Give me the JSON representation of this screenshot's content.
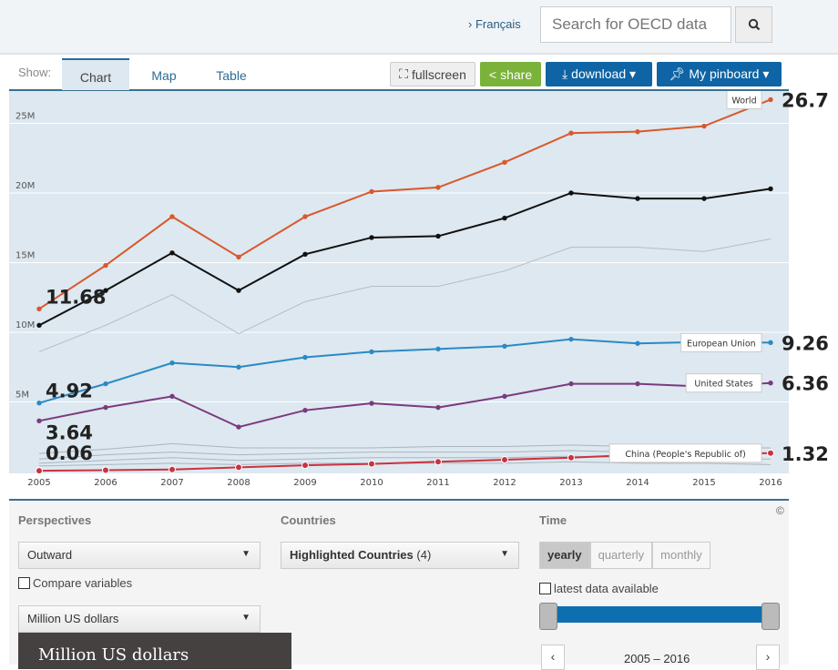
{
  "header": {
    "language_link": "› Français",
    "search_placeholder": "Search for OECD data",
    "search_icon": "magnifier-icon"
  },
  "toolbar": {
    "show_label": "Show:",
    "tabs": [
      {
        "label": "Chart",
        "active": true
      },
      {
        "label": "Map"
      },
      {
        "label": "Table"
      }
    ],
    "fullscreen": "fullscreen",
    "share": "share",
    "download": "download ▾",
    "pinboard": "My pinboard ▾"
  },
  "chart_data": {
    "type": "line",
    "x": [
      2005,
      2006,
      2007,
      2008,
      2009,
      2010,
      2011,
      2012,
      2013,
      2014,
      2015,
      2016
    ],
    "x_tick_labels": [
      "2005",
      "2006",
      "2007",
      "2008",
      "2009",
      "2010",
      "2011",
      "2012",
      "2013",
      "2014",
      "2015",
      "2016"
    ],
    "y_tick_labels": [
      "5M",
      "10M",
      "15M",
      "20M",
      "25M"
    ],
    "ylim": [
      0,
      27
    ],
    "grid": true,
    "series": [
      {
        "name": "World",
        "color": "#d9582b",
        "values": [
          11.68,
          14.8,
          18.3,
          15.4,
          18.3,
          20.1,
          20.4,
          22.2,
          24.3,
          24.4,
          24.8,
          26.7
        ],
        "start_label": "11.68",
        "end_label": "26.7"
      },
      {
        "color": "#111111",
        "values": [
          10.5,
          13.0,
          15.7,
          13.0,
          15.6,
          16.8,
          16.9,
          18.2,
          20.0,
          19.6,
          19.6,
          20.3
        ]
      },
      {
        "color": "#b3bec6",
        "values": [
          8.6,
          10.5,
          12.7,
          9.9,
          12.2,
          13.3,
          13.3,
          14.4,
          16.1,
          16.1,
          15.8,
          16.7
        ]
      },
      {
        "name": "European Union",
        "color": "#2a8ac4",
        "values": [
          4.92,
          6.3,
          7.8,
          7.5,
          8.2,
          8.6,
          8.8,
          9.0,
          9.5,
          9.2,
          9.3,
          9.26
        ],
        "start_label": "4.92",
        "end_label": "9.26"
      },
      {
        "name": "United States",
        "color": "#7b3a7e",
        "values": [
          3.64,
          4.6,
          5.4,
          3.2,
          4.4,
          4.9,
          4.6,
          5.4,
          6.3,
          6.3,
          6.1,
          6.36
        ],
        "start_label": "3.64",
        "end_label": "6.36"
      },
      {
        "color": "#a9b5bf",
        "values": [
          1.3,
          1.6,
          2.0,
          1.7,
          1.7,
          1.7,
          1.8,
          1.8,
          1.9,
          1.8,
          1.7,
          1.7
        ]
      },
      {
        "color": "#a9b5bf",
        "values": [
          0.9,
          1.2,
          1.4,
          1.2,
          1.3,
          1.4,
          1.4,
          1.4,
          1.5,
          1.4,
          1.3,
          1.3
        ]
      },
      {
        "color": "#a9b5bf",
        "values": [
          0.6,
          0.8,
          1.0,
          0.8,
          0.9,
          1.0,
          1.0,
          1.0,
          1.1,
          1.0,
          0.9,
          0.9
        ]
      },
      {
        "color": "#a9b5bf",
        "values": [
          0.4,
          0.5,
          0.6,
          0.5,
          0.6,
          0.6,
          0.6,
          0.6,
          0.7,
          0.6,
          0.6,
          0.5
        ]
      },
      {
        "name": "China (People's Republic of)",
        "color": "#c9333f",
        "values": [
          0.06,
          0.1,
          0.15,
          0.3,
          0.45,
          0.55,
          0.7,
          0.85,
          1.0,
          1.2,
          1.25,
          1.32
        ],
        "start_label": "0.06",
        "end_label": "1.32"
      }
    ]
  },
  "panel": {
    "perspectives": {
      "title": "Perspectives",
      "value": "Outward",
      "compare": "Compare variables",
      "unit": "Million US dollars"
    },
    "countries": {
      "title": "Countries",
      "value_bold": "Highlighted Countries",
      "value_count": "(4)"
    },
    "time": {
      "title": "Time",
      "options": [
        "yearly",
        "quarterly",
        "monthly"
      ],
      "active": "yearly",
      "latest": "latest data available",
      "range": "2005 – 2016",
      "range_start": 2005,
      "range_end": 2016
    },
    "copyright": "©",
    "tooltip": "Million US dollars"
  }
}
